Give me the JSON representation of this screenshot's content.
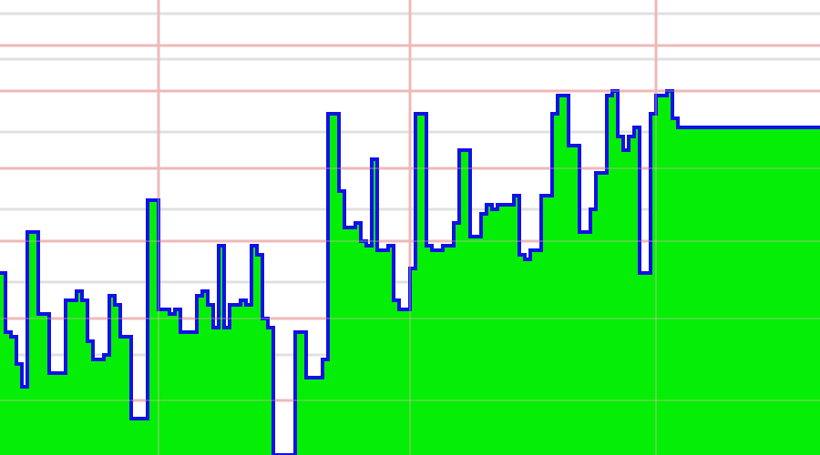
{
  "chart_data": {
    "type": "area",
    "title": "",
    "xlabel": "",
    "ylabel": "",
    "xlim": [
      0,
      150
    ],
    "ylim": [
      0,
      100
    ],
    "x_grid_major": [
      29,
      75,
      120
    ],
    "y_grid_major": [
      12,
      30,
      47,
      63,
      80,
      90
    ],
    "y_grid_minor": [
      22,
      38,
      54,
      71,
      87,
      97
    ],
    "colors": {
      "fill": "#00ee00",
      "stroke": "#1010e8",
      "grid_major": "#f0b8b8",
      "grid_minor": "#e0e0e0",
      "background": "#ffffff"
    },
    "series": [
      {
        "x": [
          0,
          1,
          2,
          3,
          4,
          5,
          6,
          7,
          8,
          9,
          10,
          11,
          12,
          13,
          14,
          15,
          16,
          17,
          18,
          19,
          20,
          21,
          22,
          23,
          24,
          25,
          26,
          27,
          28,
          29,
          30,
          31,
          32,
          33,
          34,
          35,
          36,
          37,
          38,
          39,
          40,
          41,
          42,
          43,
          44,
          45,
          46,
          47,
          48,
          49,
          50,
          51,
          52,
          53,
          54,
          55,
          56,
          57,
          58,
          59,
          60,
          61,
          62,
          63,
          64,
          65,
          66,
          67,
          68,
          69,
          70,
          71,
          72,
          73,
          74,
          75,
          76,
          77,
          78,
          79,
          80,
          81,
          82,
          83,
          84,
          85,
          86,
          87,
          88,
          89,
          90,
          91,
          92,
          93,
          94,
          95,
          96,
          97,
          98,
          99,
          100,
          101,
          102,
          103,
          104,
          105,
          106,
          107,
          108,
          109,
          110,
          111,
          112,
          113,
          114,
          115,
          116,
          117,
          118,
          119,
          120,
          121,
          122,
          123,
          124,
          125,
          126,
          127,
          128,
          129,
          130,
          131,
          132,
          133,
          134,
          135,
          136,
          137,
          138,
          139,
          140,
          141,
          142,
          143,
          144,
          145,
          146,
          147,
          148,
          149
        ],
        "values": [
          40,
          27,
          26,
          20,
          15,
          49,
          49,
          31,
          31,
          18,
          18,
          18,
          34,
          34,
          36,
          34,
          25,
          21,
          21,
          22,
          35,
          33,
          26,
          26,
          8,
          8,
          8,
          56,
          56,
          32,
          32,
          31,
          32,
          27,
          27,
          27,
          35,
          36,
          33,
          28,
          46,
          28,
          33,
          33,
          34,
          33,
          46,
          44,
          30,
          28,
          0,
          0,
          0,
          0,
          27,
          27,
          17,
          17,
          17,
          21,
          75,
          75,
          58,
          50,
          50,
          51,
          47,
          46,
          65,
          45,
          45,
          46,
          34,
          32,
          32,
          41,
          75,
          75,
          46,
          45,
          45,
          46,
          46,
          51,
          67,
          67,
          48,
          48,
          53,
          55,
          54,
          55,
          55,
          55,
          57,
          44,
          43,
          45,
          45,
          57,
          57,
          75,
          79,
          79,
          68,
          68,
          49,
          49,
          54,
          62,
          62,
          79,
          80,
          70,
          67,
          70,
          72,
          40,
          40,
          75,
          79,
          79,
          80,
          74,
          72,
          72,
          72,
          72,
          72,
          72,
          72,
          72,
          72,
          72,
          72,
          72,
          72,
          72,
          72,
          72,
          72,
          72,
          72,
          72,
          72,
          72,
          72,
          72,
          72,
          72
        ]
      }
    ]
  }
}
